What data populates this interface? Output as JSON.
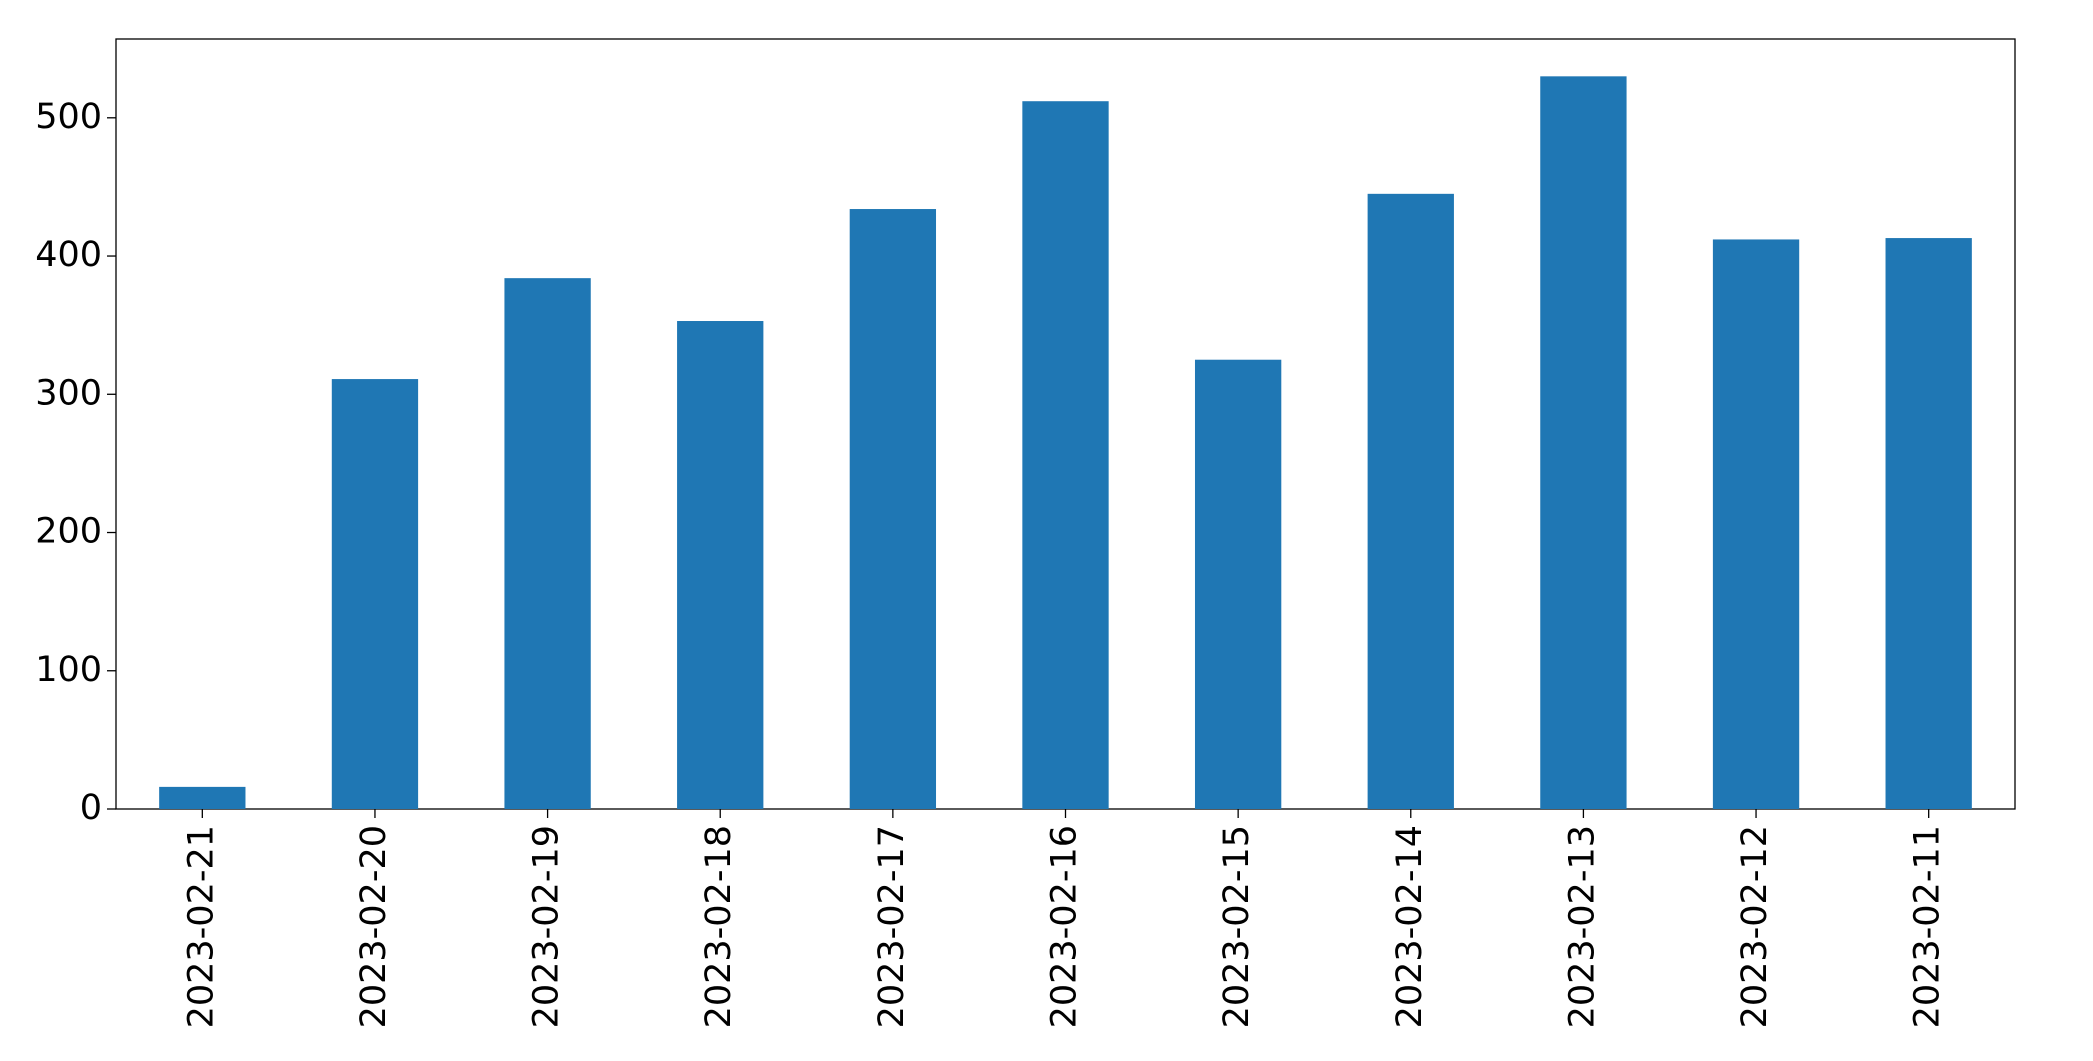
{
  "chart_data": {
    "type": "bar",
    "categories": [
      "2023-02-21",
      "2023-02-20",
      "2023-02-19",
      "2023-02-18",
      "2023-02-17",
      "2023-02-16",
      "2023-02-15",
      "2023-02-14",
      "2023-02-13",
      "2023-02-12",
      "2023-02-11"
    ],
    "values": [
      16,
      311,
      384,
      353,
      434,
      512,
      325,
      445,
      530,
      412,
      413
    ],
    "color": "#1f77b4",
    "ylim": [
      0,
      557
    ],
    "yticks": [
      0,
      100,
      200,
      300,
      400,
      500
    ],
    "grid": false
  }
}
